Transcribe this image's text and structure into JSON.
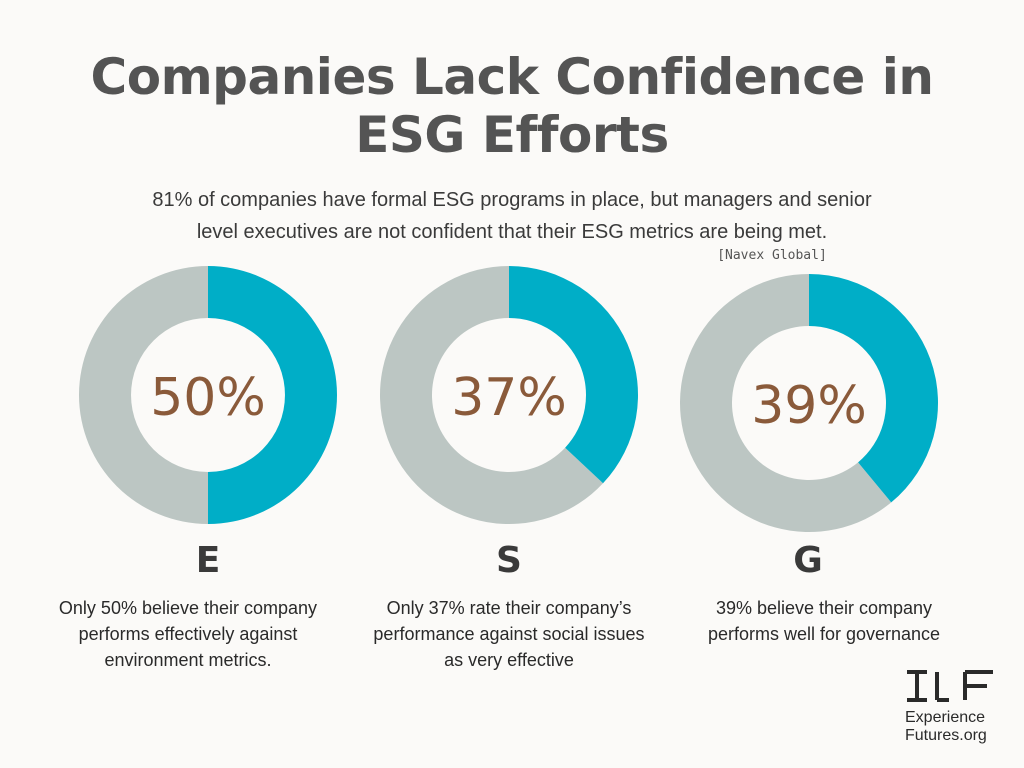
{
  "title_lines": [
    "Companies Lack Confidence in",
    "ESG Efforts"
  ],
  "subtitle_lines": [
    "81% of companies have formal ESG programs in place, but managers and senior",
    "level executives are not confident that their ESG metrics are being met."
  ],
  "source": "[Navex Global]",
  "colors": {
    "filled": "#00aec7",
    "remainder": "#bcc6c3",
    "percent_text": "#8a5a3a"
  },
  "chart_data": [
    {
      "type": "pie",
      "label": "E",
      "display": "50%",
      "values": [
        50,
        50
      ],
      "caption_lines": [
        "Only 50% believe their company",
        "performs effectively against",
        "environment metrics."
      ]
    },
    {
      "type": "pie",
      "label": "S",
      "display": "37%",
      "values": [
        37,
        63
      ],
      "caption_lines": [
        "Only 37% rate their company’s",
        "performance against social issues",
        "as very effective"
      ]
    },
    {
      "type": "pie",
      "label": "G",
      "display": "39%",
      "values": [
        39,
        61
      ],
      "caption_lines": [
        "39% believe their company",
        "performs well for governance"
      ]
    }
  ],
  "logo": {
    "text_lines": [
      "Experience",
      "Futures.org"
    ],
    "icon": "experience-futures-logo-icon"
  }
}
